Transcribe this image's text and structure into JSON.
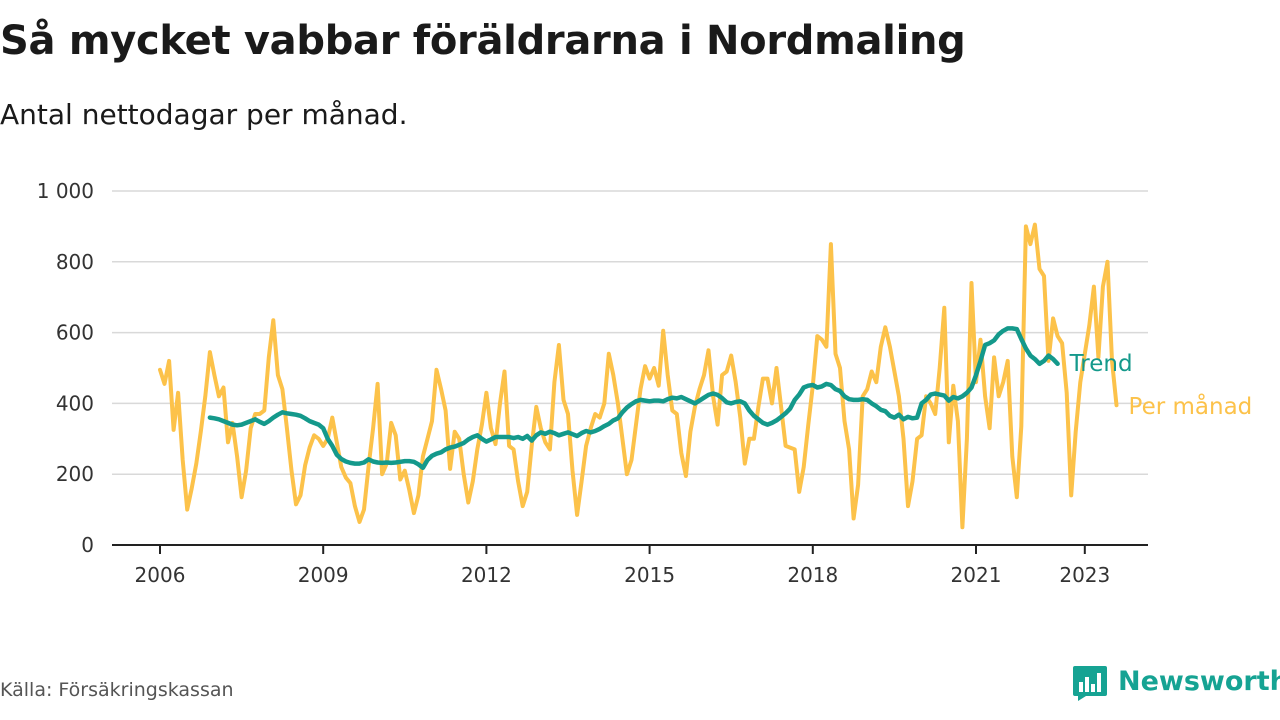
{
  "title": "Så mycket vabbar föräldrarna i Nordmaling",
  "subtitle": "Antal nettodagar per månad.",
  "source": "Källa: Försäkringskassan",
  "brand": {
    "name": "Newsworthy",
    "icon": "bar-chart-speech-bubble-icon",
    "color": "#16a393"
  },
  "colors": {
    "per_month": "#fcc24a",
    "trend": "#14998b",
    "grid": "#d9d9d9",
    "axis": "#222222"
  },
  "chart_data": {
    "type": "line",
    "title": "Så mycket vabbar föräldrarna i Nordmaling",
    "subtitle": "Antal nettodagar per månad.",
    "xlabel": "",
    "ylabel": "",
    "x_ticks": [
      "2006",
      "2009",
      "2012",
      "2015",
      "2018",
      "2021",
      "2023"
    ],
    "y_ticks": [
      0,
      200,
      400,
      600,
      800,
      1000
    ],
    "y_tick_labels": [
      "0",
      "200",
      "400",
      "600",
      "800",
      "1 000"
    ],
    "ylim": [
      0,
      1000
    ],
    "grid": "horizontal",
    "legend": "inline labels at line ends (right)",
    "series": [
      {
        "name": "Per månad",
        "color": "#fcc24a",
        "start": "2006-01",
        "values": [
          495,
          455,
          520,
          325,
          430,
          240,
          100,
          160,
          230,
          320,
          420,
          545,
          480,
          420,
          445,
          290,
          345,
          250,
          135,
          210,
          330,
          370,
          370,
          380,
          530,
          635,
          480,
          440,
          330,
          210,
          115,
          140,
          225,
          275,
          310,
          300,
          280,
          300,
          360,
          290,
          220,
          190,
          175,
          110,
          65,
          100,
          220,
          330,
          455,
          200,
          230,
          345,
          310,
          185,
          210,
          155,
          90,
          140,
          250,
          300,
          350,
          495,
          440,
          380,
          215,
          320,
          300,
          200,
          120,
          180,
          270,
          340,
          430,
          330,
          285,
          400,
          490,
          280,
          270,
          180,
          110,
          150,
          280,
          390,
          330,
          290,
          270,
          460,
          565,
          410,
          370,
          210,
          85,
          180,
          280,
          330,
          370,
          360,
          400,
          540,
          480,
          400,
          300,
          200,
          240,
          340,
          440,
          505,
          470,
          500,
          450,
          605,
          480,
          380,
          370,
          260,
          195,
          320,
          390,
          440,
          480,
          550,
          420,
          340,
          480,
          490,
          535,
          460,
          360,
          230,
          300,
          300,
          390,
          470,
          470,
          400,
          500,
          390,
          280,
          275,
          270,
          150,
          220,
          340,
          450,
          590,
          580,
          560,
          850,
          540,
          500,
          350,
          270,
          75,
          170,
          420,
          440,
          490,
          460,
          560,
          615,
          560,
          490,
          420,
          300,
          110,
          180,
          300,
          310,
          420,
          400,
          370,
          500,
          670,
          290,
          450,
          350,
          50,
          300,
          740,
          460,
          580,
          420,
          330,
          530,
          420,
          460,
          520,
          250,
          135,
          335,
          900,
          850,
          905,
          780,
          760,
          520,
          640,
          590,
          570,
          430,
          140,
          320,
          460,
          540,
          620,
          730,
          530,
          730,
          800,
          520,
          395
        ]
      },
      {
        "name": "Trend",
        "color": "#14998b",
        "start": "2006-12",
        "values": [
          360,
          358,
          355,
          350,
          345,
          340,
          338,
          340,
          345,
          350,
          355,
          348,
          342,
          350,
          360,
          368,
          375,
          372,
          370,
          368,
          365,
          358,
          350,
          345,
          340,
          330,
          300,
          280,
          255,
          243,
          236,
          232,
          230,
          230,
          233,
          242,
          236,
          233,
          232,
          233,
          232,
          233,
          235,
          237,
          237,
          235,
          228,
          218,
          240,
          252,
          258,
          262,
          270,
          275,
          278,
          283,
          288,
          298,
          305,
          310,
          300,
          292,
          298,
          305,
          305,
          305,
          305,
          302,
          305,
          300,
          308,
          295,
          310,
          318,
          314,
          320,
          316,
          310,
          314,
          318,
          313,
          308,
          316,
          322,
          318,
          322,
          328,
          336,
          342,
          352,
          358,
          375,
          388,
          398,
          406,
          410,
          408,
          406,
          408,
          408,
          406,
          412,
          416,
          414,
          418,
          412,
          406,
          400,
          408,
          416,
          424,
          428,
          424,
          415,
          403,
          400,
          404,
          406,
          400,
          380,
          365,
          355,
          345,
          340,
          345,
          352,
          362,
          372,
          385,
          410,
          425,
          445,
          450,
          452,
          445,
          448,
          455,
          452,
          440,
          435,
          420,
          412,
          410,
          410,
          412,
          410,
          400,
          392,
          382,
          378,
          365,
          360,
          368,
          355,
          362,
          358,
          360,
          400,
          410,
          425,
          428,
          425,
          422,
          408,
          418,
          414,
          420,
          430,
          445,
          480,
          520,
          565,
          570,
          578,
          595,
          605,
          612,
          612,
          610,
          582,
          555,
          535,
          525,
          512,
          520,
          535,
          525,
          512
        ]
      }
    ]
  }
}
